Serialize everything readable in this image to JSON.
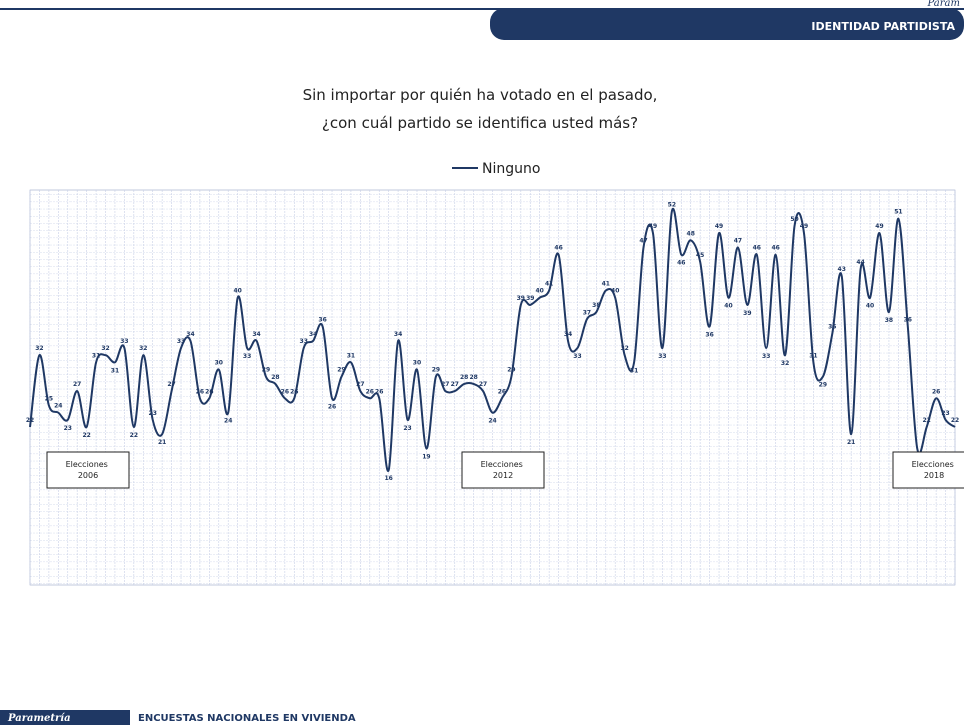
{
  "header": {
    "brand_corner": "Param",
    "section": "IDENTIDAD PARTIDISTA"
  },
  "footer": {
    "brand": "Parametría",
    "text": "ENCUESTAS NACIONALES   EN VIVIENDA"
  },
  "chart_data": {
    "type": "line",
    "title": [
      "Sin importar por quién ha votado en el pasado,",
      "¿con cuál partido se identifica usted más?"
    ],
    "annotations": [
      "Elecciones 2006",
      "Elecciones 2012",
      "Elecciones 2018"
    ],
    "ylim": [
      0,
      55
    ],
    "grid": true,
    "categories": [
      null,
      null,
      null,
      null,
      null,
      null,
      null,
      null,
      null,
      null,
      null,
      null,
      null,
      null,
      null,
      null,
      null,
      null,
      null,
      null,
      null,
      null,
      null,
      null,
      null,
      null,
      null,
      null,
      null,
      null,
      null,
      null,
      null,
      null,
      null,
      null,
      null,
      null,
      null,
      null,
      null,
      null,
      null,
      null,
      null,
      null,
      null,
      null,
      null,
      null,
      null,
      null,
      null,
      null,
      null,
      null,
      null,
      null,
      null,
      null,
      null,
      null,
      null,
      null,
      null,
      null,
      null,
      null,
      null,
      null,
      null,
      null,
      null,
      null,
      null,
      null,
      null,
      null,
      null,
      null,
      null,
      null,
      null,
      null,
      null,
      null,
      null,
      null,
      null,
      null,
      null,
      null,
      null,
      null,
      null,
      null,
      null,
      null,
      null
    ],
    "series": [
      {
        "name": "Ninguno",
        "color": "#1f3864",
        "values": [
          22,
          32,
          25,
          24,
          23,
          27,
          22,
          31,
          32,
          31,
          33,
          22,
          32,
          23,
          21,
          27,
          33,
          34,
          26,
          26,
          30,
          24,
          40,
          33,
          34,
          29,
          28,
          26,
          26,
          33,
          34,
          36,
          26,
          29,
          31,
          27,
          26,
          26,
          16,
          34,
          23,
          30,
          19,
          29,
          27,
          27,
          28,
          28,
          27,
          24,
          26,
          29,
          39,
          39,
          40,
          41,
          46,
          34,
          33,
          37,
          38,
          41,
          40,
          32,
          31,
          47,
          49,
          33,
          52,
          46,
          48,
          45,
          36,
          49,
          40,
          47,
          39,
          46,
          33,
          46,
          32,
          50,
          49,
          31,
          29,
          35,
          43,
          21,
          44,
          40,
          49,
          38,
          51,
          36,
          19,
          22,
          26,
          23,
          22
        ]
      }
    ]
  }
}
